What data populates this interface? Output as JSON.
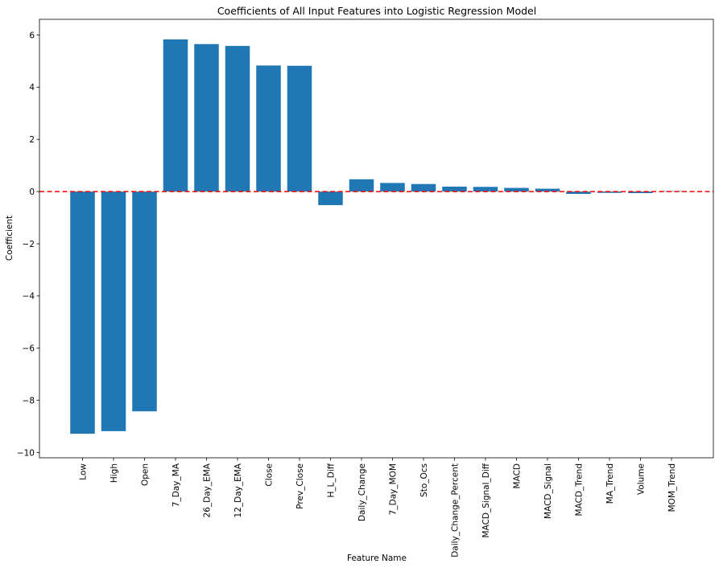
{
  "chart_data": {
    "type": "bar",
    "title": "Coefficients of All Input Features into Logistic Regression Model",
    "xlabel": "Feature Name",
    "ylabel": "Coefficient",
    "categories": [
      "Low",
      "High",
      "Open",
      "7_Day_MA",
      "26_Day_EMA",
      "12_Day_EMA",
      "Close",
      "Prev_Close",
      "H_L_Diff",
      "Daily_Change",
      "7_Day_MOM",
      "Sto_Ocs",
      "Daily_Change_Percent",
      "MACD_Signal_Diff",
      "MACD",
      "MACD_Signal",
      "MACD_Trend",
      "MA_Trend",
      "Volume",
      "MOM_Trend"
    ],
    "values": [
      -9.28,
      -9.18,
      -8.42,
      5.83,
      5.65,
      5.58,
      4.83,
      4.82,
      -0.52,
      0.47,
      0.33,
      0.29,
      0.19,
      0.18,
      0.14,
      0.11,
      -0.09,
      -0.05,
      -0.06,
      0.02
    ],
    "ylim": [
      -10.2,
      6.6
    ],
    "yticks": [
      -10,
      -8,
      -6,
      -4,
      -2,
      0,
      2,
      4,
      6
    ],
    "reference_line": {
      "y": 0,
      "style": "dashed",
      "color": "#ff0000"
    },
    "bar_color": "#1f77b4",
    "grid": false,
    "legend": "none"
  }
}
